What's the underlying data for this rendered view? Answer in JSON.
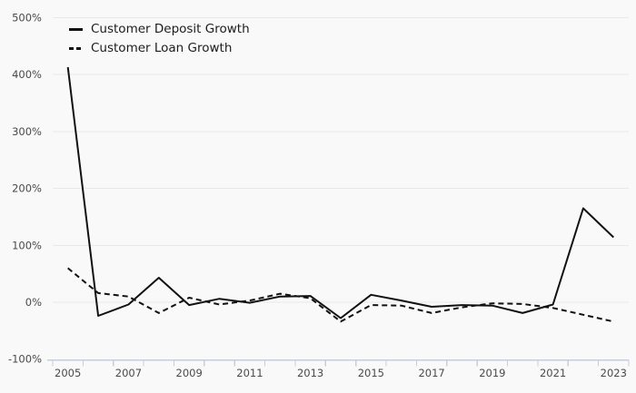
{
  "colors": {
    "background": "#f9f9fa",
    "gridline": "#e9e9ec",
    "axis_line": "#c7cde1",
    "tick_mark": "#c7cde1",
    "tick_label": "#4a4a4a",
    "series_line": "#111111",
    "legend_text": "#1c1c1c"
  },
  "legend": {
    "position": "top-left"
  },
  "chart_data": {
    "type": "line",
    "title": "",
    "xlabel": "",
    "ylabel": "",
    "x": [
      2005,
      2006,
      2007,
      2008,
      2009,
      2010,
      2011,
      2012,
      2013,
      2014,
      2015,
      2016,
      2017,
      2018,
      2019,
      2020,
      2021,
      2022,
      2023
    ],
    "series": [
      {
        "name": "Customer Deposit Growth",
        "line_style": "solid",
        "color": "#111111",
        "values": [
          413,
          -24,
          -4,
          43,
          -5,
          6,
          -1,
          10,
          11,
          -28,
          13,
          3,
          -8,
          -5,
          -6,
          -19,
          -4,
          165,
          114
        ]
      },
      {
        "name": "Customer Loan Growth",
        "line_style": "dashed",
        "color": "#111111",
        "values": [
          60,
          16,
          10,
          -19,
          8,
          -4,
          3,
          15,
          7,
          -34,
          -5,
          -6,
          -19,
          -9,
          -2,
          -3,
          -10,
          -22,
          -34
        ]
      }
    ],
    "ylim": [
      -100,
      500
    ],
    "ytick_step": 100,
    "ytick_labels": [
      "-100%",
      "0%",
      "100%",
      "200%",
      "300%",
      "400%",
      "500%"
    ],
    "xtick_labels": [
      "2005",
      "2007",
      "2009",
      "2011",
      "2013",
      "2015",
      "2017",
      "2019",
      "2021",
      "2023"
    ],
    "grid": "horizontal",
    "legend_position": "top-left"
  }
}
